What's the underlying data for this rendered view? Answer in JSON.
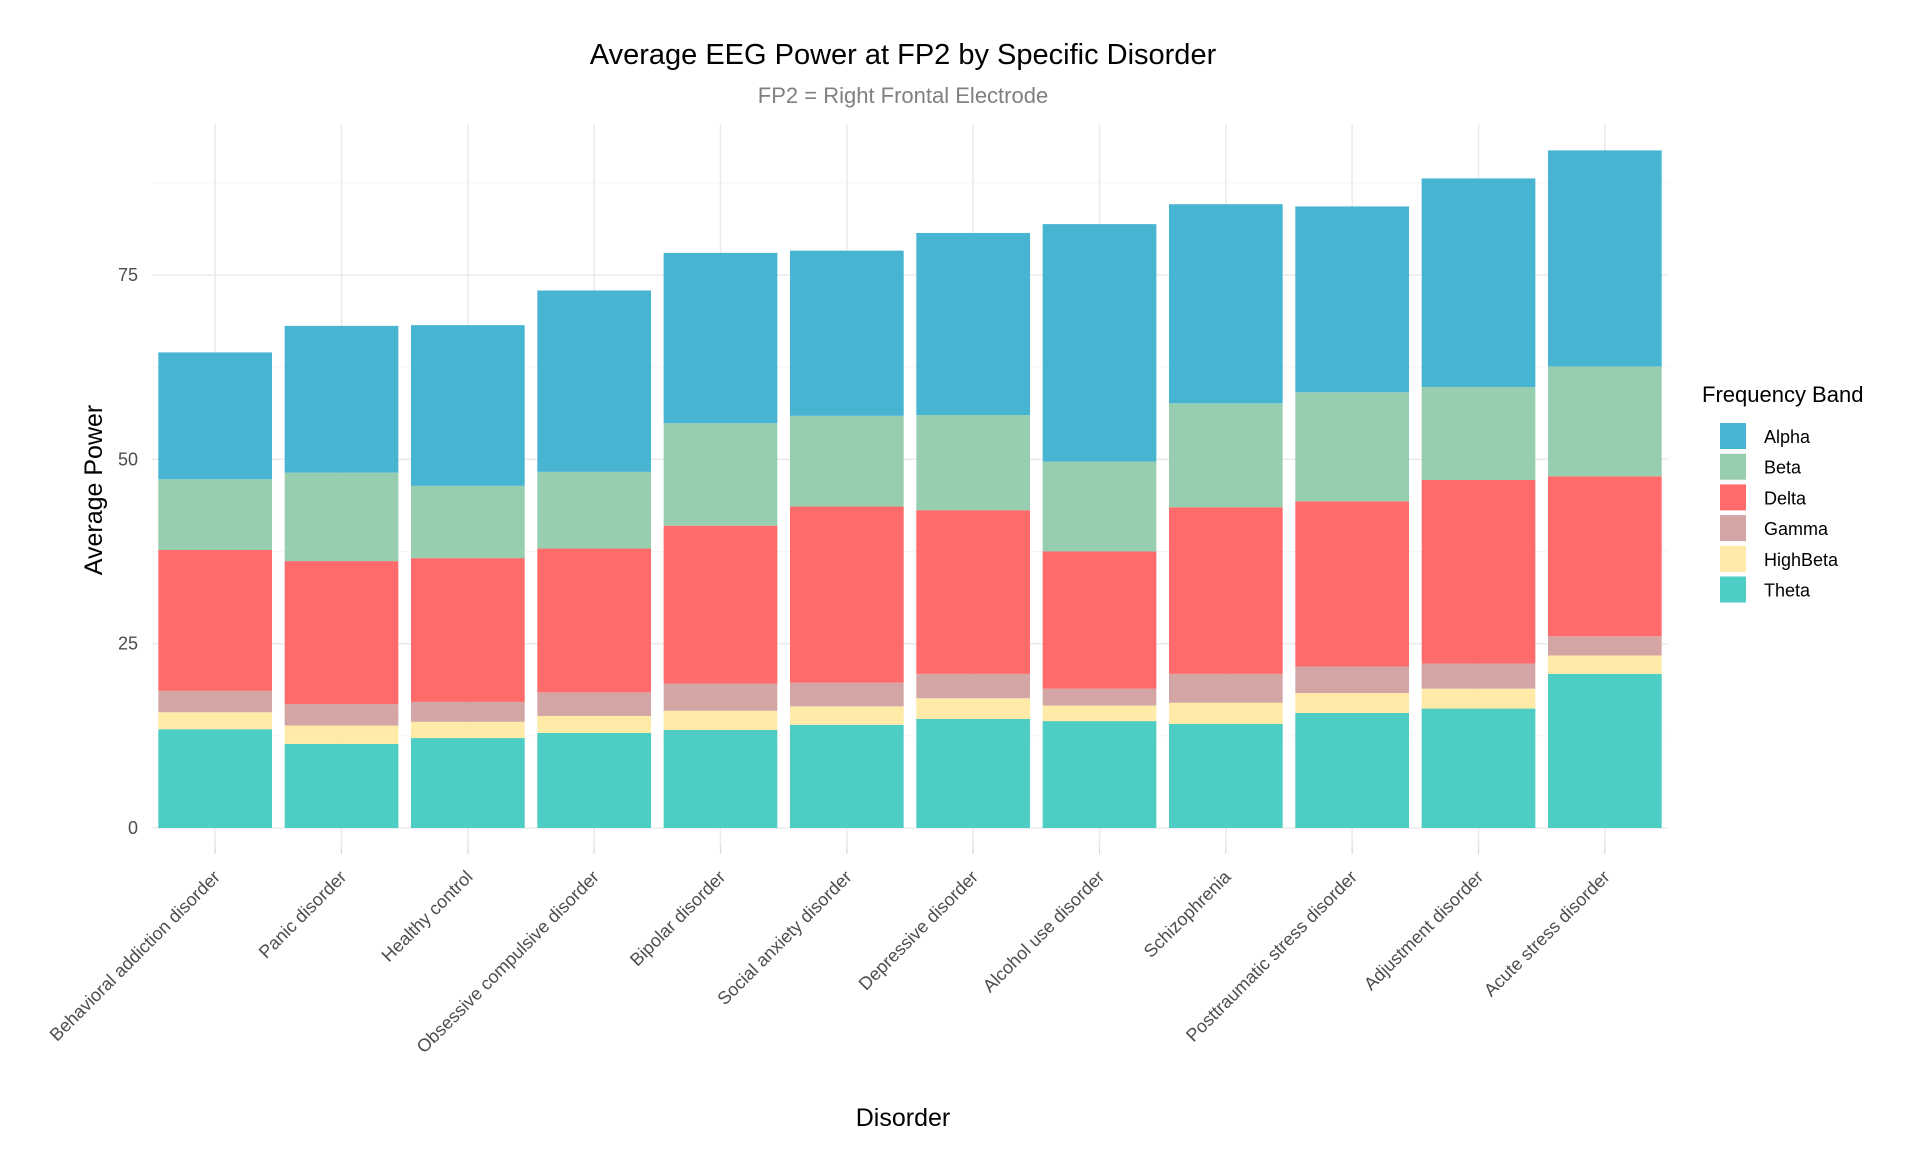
{
  "chart_data": {
    "type": "bar",
    "stacked": true,
    "title": "Average EEG Power at FP2 by Specific Disorder",
    "subtitle": "FP2 = Right Frontal Electrode",
    "xlabel": "Disorder",
    "ylabel": "Average Power",
    "ylim": [
      0,
      96
    ],
    "yticks": [
      0,
      25,
      50,
      75
    ],
    "grid": true,
    "legend": {
      "title": "Frequency Band",
      "position": "right"
    },
    "categories": [
      "Behavioral addiction disorder",
      "Panic disorder",
      "Healthy control",
      "Obsessive compulsive disorder",
      "Bipolar disorder",
      "Social anxiety disorder",
      "Depressive disorder",
      "Alcohol use disorder",
      "Schizophrenia",
      "Posttraumatic stress disorder",
      "Adjustment disorder",
      "Acute stress disorder"
    ],
    "series": [
      {
        "name": "Alpha",
        "color": "#47B4D2",
        "values": [
          17.2,
          19.9,
          21.8,
          24.6,
          23.1,
          22.4,
          24.7,
          32.2,
          27.0,
          25.2,
          28.3,
          29.3
        ]
      },
      {
        "name": "Beta",
        "color": "#97CEB0",
        "values": [
          9.6,
          12.0,
          9.8,
          10.4,
          13.9,
          12.3,
          12.9,
          12.2,
          14.1,
          14.8,
          12.6,
          14.9
        ]
      },
      {
        "name": "Delta",
        "color": "#FF6B6B",
        "values": [
          19.1,
          19.4,
          19.5,
          19.5,
          21.4,
          23.9,
          22.2,
          18.6,
          22.6,
          22.4,
          24.9,
          21.7
        ]
      },
      {
        "name": "Gamma",
        "color": "#D4A5A5",
        "values": [
          2.9,
          2.9,
          2.7,
          3.2,
          3.7,
          3.2,
          3.3,
          2.3,
          3.9,
          3.6,
          3.4,
          2.6
        ]
      },
      {
        "name": "HighBeta",
        "color": "#FFEAA7",
        "values": [
          2.3,
          2.5,
          2.2,
          2.3,
          2.6,
          2.5,
          2.8,
          2.1,
          2.9,
          2.7,
          2.7,
          2.5
        ]
      },
      {
        "name": "Theta",
        "color": "#4ECDC4",
        "values": [
          13.4,
          11.4,
          12.2,
          12.9,
          13.3,
          14.0,
          14.8,
          14.5,
          14.1,
          15.6,
          16.2,
          20.9
        ]
      }
    ]
  }
}
